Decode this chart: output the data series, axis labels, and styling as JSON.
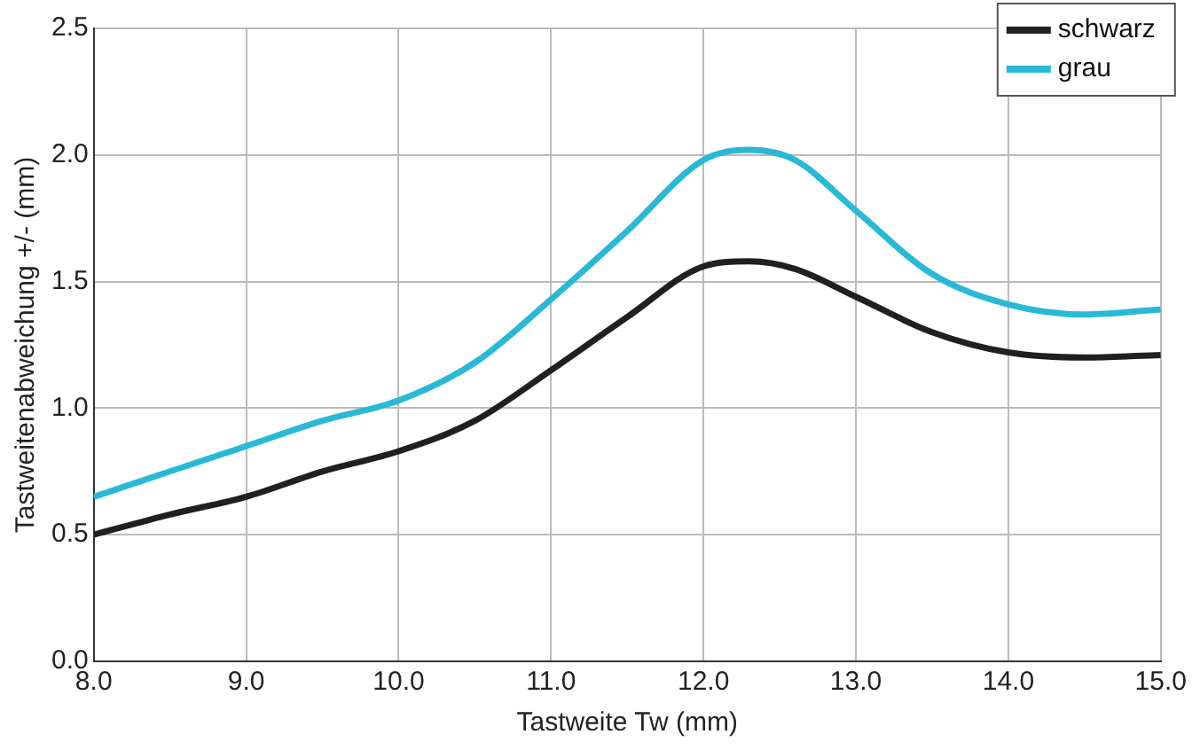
{
  "chart_data": {
    "type": "line",
    "xlabel": "Tastweite Tw (mm)",
    "ylabel": "Tastweitenabweichung +/- (mm)",
    "x": [
      8.0,
      8.5,
      9.0,
      9.5,
      10.0,
      10.5,
      11.0,
      11.5,
      12.0,
      12.3,
      12.6,
      13.0,
      13.5,
      14.0,
      14.5,
      15.0
    ],
    "series": [
      {
        "name": "schwarz",
        "color": "#231f20",
        "values": [
          0.5,
          0.58,
          0.65,
          0.75,
          0.83,
          0.95,
          1.15,
          1.36,
          1.56,
          1.58,
          1.55,
          1.44,
          1.3,
          1.22,
          1.2,
          1.21
        ]
      },
      {
        "name": "grau",
        "color": "#29b9d6",
        "values": [
          0.65,
          0.75,
          0.85,
          0.95,
          1.03,
          1.18,
          1.43,
          1.7,
          1.98,
          2.02,
          1.98,
          1.78,
          1.53,
          1.41,
          1.37,
          1.39
        ]
      }
    ],
    "xlim": [
      8.0,
      15.0
    ],
    "xticks": [
      {
        "value": 8,
        "label": "8.0"
      },
      {
        "value": 9,
        "label": "9.0"
      },
      {
        "value": 10,
        "label": "10.0"
      },
      {
        "value": 11,
        "label": "11.0"
      },
      {
        "value": 12,
        "label": "12.0"
      },
      {
        "value": 13,
        "label": "13.0"
      },
      {
        "value": 14,
        "label": "14.0"
      },
      {
        "value": 15,
        "label": "15.0"
      }
    ],
    "ylim": [
      0,
      2.5
    ],
    "yticks": [
      {
        "value": 0,
        "label": "0.0"
      },
      {
        "value": 0.5,
        "label": "0.5"
      },
      {
        "value": 1,
        "label": "1.0"
      },
      {
        "value": 1.5,
        "label": "1.5"
      },
      {
        "value": 2,
        "label": "2.0"
      },
      {
        "value": 2.5,
        "label": "2.5"
      }
    ],
    "grid": true,
    "legend": "top right",
    "marker": "none",
    "line_style": "solid"
  }
}
